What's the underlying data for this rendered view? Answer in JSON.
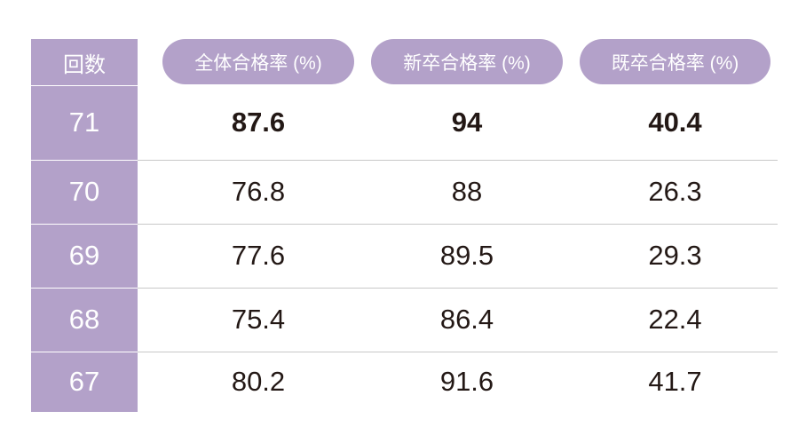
{
  "table": {
    "header": [
      "回数",
      "全体合格率 (%)",
      "新卒合格率 (%)",
      "既卒合格率 (%)"
    ],
    "rows": [
      [
        71,
        87.6,
        94,
        40.4
      ],
      [
        70,
        76.8,
        88,
        26.3
      ],
      [
        69,
        77.6,
        89.5,
        29.3
      ],
      [
        68,
        75.4,
        86.4,
        22.4
      ],
      [
        67,
        80.2,
        91.6,
        41.7
      ]
    ]
  }
}
